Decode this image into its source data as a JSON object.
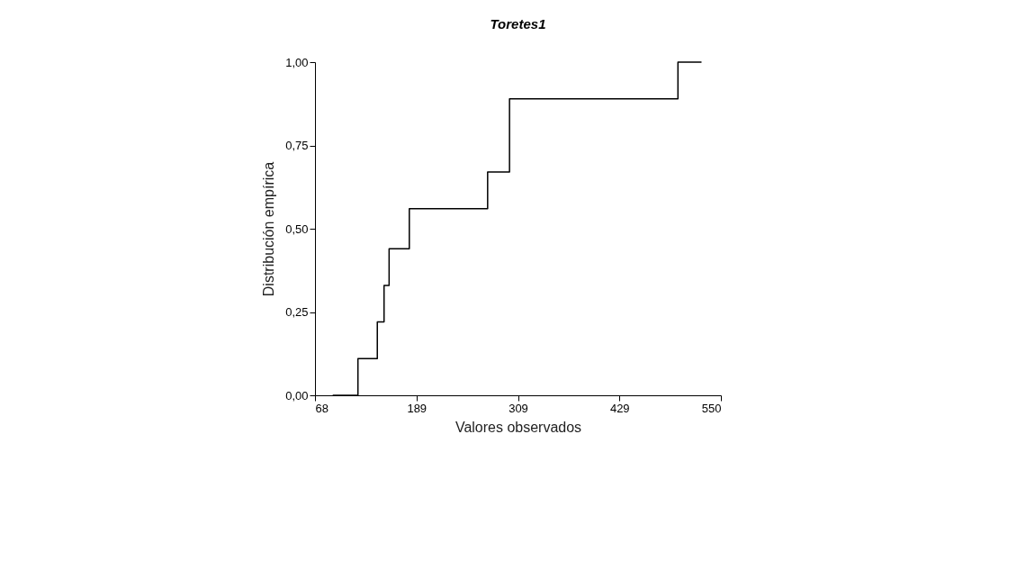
{
  "chart_data": {
    "type": "step",
    "title": "Toretes1",
    "xlabel": "Valores observados",
    "ylabel": "Distribución empírica",
    "x": [
      89,
      119,
      142,
      150,
      156,
      180,
      273,
      299,
      499,
      527
    ],
    "series": [
      {
        "color": "#000000",
        "values": [
          0,
          0.11,
          0.22,
          0.33,
          0.44,
          0.56,
          0.67,
          0.89,
          1.0,
          1.0
        ]
      }
    ],
    "xlim": [
      68,
      550
    ],
    "xticks": [
      68,
      {
        "value": 188.5,
        "label": "189"
      },
      309,
      {
        "value": 429.5,
        "label": "429"
      },
      550
    ],
    "ylim": [
      0,
      1
    ],
    "yticks": [
      {
        "value": 0,
        "label": "0,00"
      },
      {
        "value": 0.25,
        "label": "0,25"
      },
      {
        "value": 0.5,
        "label": "0,50"
      },
      {
        "value": 0.75,
        "label": "0,75"
      },
      {
        "value": 1,
        "label": "1,00"
      }
    ],
    "grid": false,
    "marker": "none",
    "line_style": "solid"
  }
}
